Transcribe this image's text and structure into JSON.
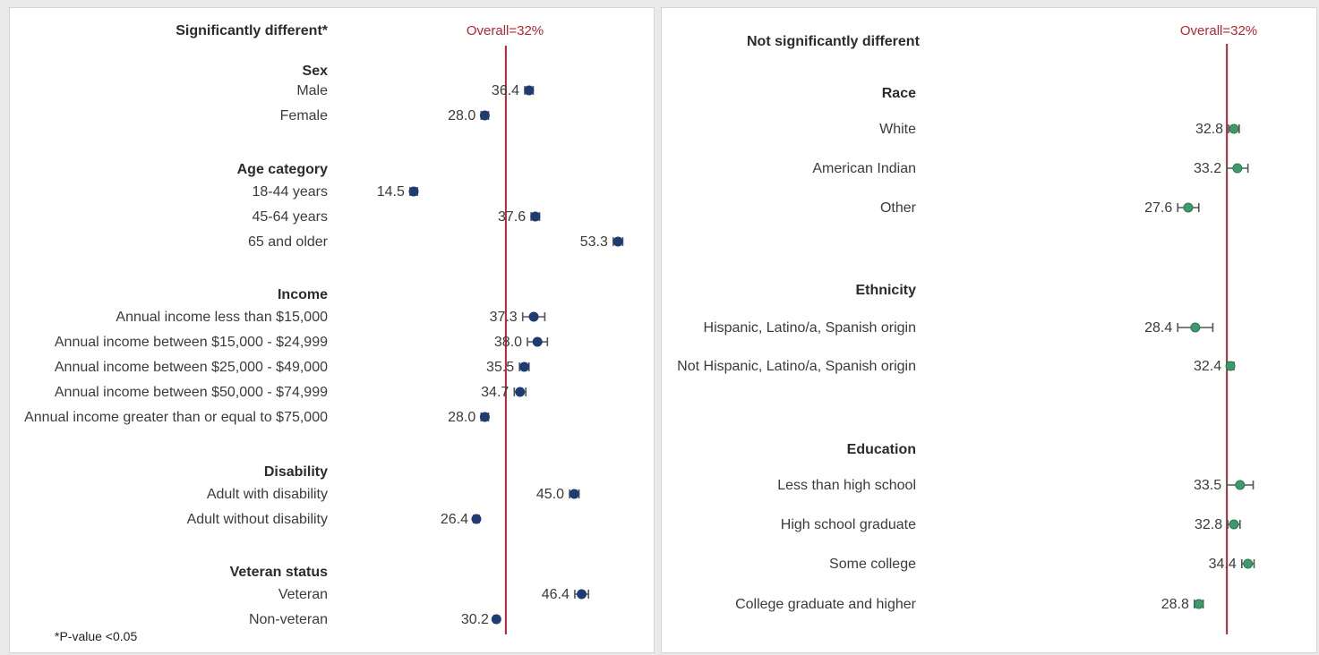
{
  "chart_data": [
    {
      "type": "forest",
      "title": "Significantly different*",
      "reference_label": "Overall=32%",
      "reference_value": 32,
      "footnote": "*P-value <0.05",
      "marker_color": "#1f3b73",
      "reference_color": "#b5262e",
      "xlim": [
        10,
        58
      ],
      "groups": [
        {
          "name": "Sex",
          "rows": [
            {
              "label": "Male",
              "value": 36.4,
              "low": 35.6,
              "high": 37.2,
              "value_text": "36.4"
            },
            {
              "label": "Female",
              "value": 28.0,
              "low": 27.3,
              "high": 28.7,
              "value_text": "28.0"
            }
          ]
        },
        {
          "name": "Age category",
          "rows": [
            {
              "label": "18-44 years",
              "value": 14.5,
              "low": 13.8,
              "high": 15.2,
              "value_text": "14.5"
            },
            {
              "label": "45-64 years",
              "value": 37.6,
              "low": 36.8,
              "high": 38.4,
              "value_text": "37.6"
            },
            {
              "label": "65 and older",
              "value": 53.3,
              "low": 52.4,
              "high": 54.2,
              "value_text": "53.3"
            }
          ]
        },
        {
          "name": "Income",
          "rows": [
            {
              "label": "Annual income less than $15,000",
              "value": 37.3,
              "low": 35.2,
              "high": 39.4,
              "value_text": "37.3"
            },
            {
              "label": "Annual income between $15,000 - $24,999",
              "value": 38.0,
              "low": 36.1,
              "high": 39.9,
              "value_text": "38.0"
            },
            {
              "label": "Annual income between $25,000 - $49,000",
              "value": 35.5,
              "low": 34.6,
              "high": 36.4,
              "value_text": "35.5"
            },
            {
              "label": "Annual income between $50,000 - $74,999",
              "value": 34.7,
              "low": 33.6,
              "high": 35.8,
              "value_text": "34.7"
            },
            {
              "label": "Annual income greater than or equal to $75,000",
              "value": 28.0,
              "low": 27.3,
              "high": 28.7,
              "value_text": "28.0"
            }
          ]
        },
        {
          "name": "Disability",
          "rows": [
            {
              "label": "Adult with disability",
              "value": 45.0,
              "low": 44.1,
              "high": 45.9,
              "value_text": "45.0"
            },
            {
              "label": "Adult without disability",
              "value": 26.4,
              "low": 25.9,
              "high": 26.9,
              "value_text": "26.4"
            }
          ]
        },
        {
          "name": "Veteran status",
          "rows": [
            {
              "label": "Veteran",
              "value": 46.4,
              "low": 45.1,
              "high": 47.7,
              "value_text": "46.4"
            },
            {
              "label": "Non-veteran",
              "value": 30.2,
              "low": 29.8,
              "high": 30.6,
              "value_text": "30.2"
            }
          ]
        }
      ]
    },
    {
      "type": "forest",
      "title": "Not significantly different",
      "reference_label": "Overall=32%",
      "reference_value": 32,
      "marker_color": "#3e9a6b",
      "reference_color": "#b5262e",
      "xlim": [
        20,
        40
      ],
      "groups": [
        {
          "name": "Race",
          "rows": [
            {
              "label": "White",
              "value": 32.8,
              "low": 32.2,
              "high": 33.4,
              "value_text": "32.8"
            },
            {
              "label": "American Indian",
              "value": 33.2,
              "low": 32.0,
              "high": 34.4,
              "value_text": "33.2"
            },
            {
              "label": "Other",
              "value": 27.6,
              "low": 26.4,
              "high": 28.8,
              "value_text": "27.6"
            }
          ]
        },
        {
          "name": "Ethnicity",
          "rows": [
            {
              "label": "Hispanic, Latino/a, Spanish origin",
              "value": 28.4,
              "low": 26.4,
              "high": 30.4,
              "value_text": "28.4"
            },
            {
              "label": "Not Hispanic, Latino/a, Spanish origin",
              "value": 32.4,
              "low": 32.0,
              "high": 32.8,
              "value_text": "32.4"
            }
          ]
        },
        {
          "name": "Education",
          "rows": [
            {
              "label": "Less than high school",
              "value": 33.5,
              "low": 32.0,
              "high": 35.0,
              "value_text": "33.5"
            },
            {
              "label": "High school graduate",
              "value": 32.8,
              "low": 32.1,
              "high": 33.5,
              "value_text": "32.8"
            },
            {
              "label": "Some college",
              "value": 34.4,
              "low": 33.7,
              "high": 35.1,
              "value_text": "34.4"
            },
            {
              "label": "College graduate and higher",
              "value": 28.8,
              "low": 28.3,
              "high": 29.3,
              "value_text": "28.8"
            }
          ]
        }
      ]
    }
  ]
}
